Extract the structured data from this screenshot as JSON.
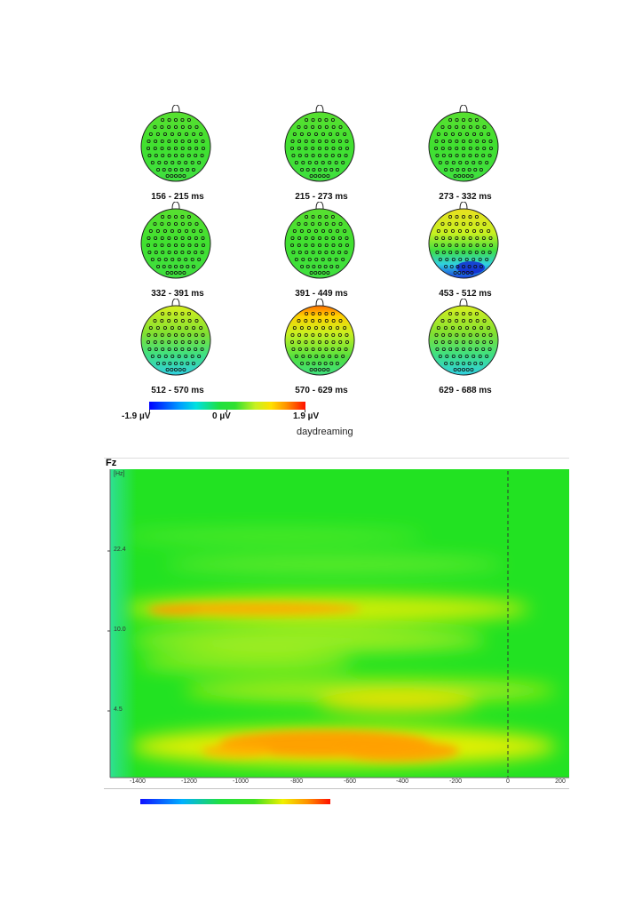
{
  "topomaps": [
    {
      "label": "156 - 215 ms",
      "pattern": "flat"
    },
    {
      "label": "215 - 273 ms",
      "pattern": "flat"
    },
    {
      "label": "273 - 332 ms",
      "pattern": "flat"
    },
    {
      "label": "332 - 391 ms",
      "pattern": "flat"
    },
    {
      "label": "391 - 449 ms",
      "pattern": "flat"
    },
    {
      "label": "453 - 512 ms",
      "pattern": "posterior-negative-strong"
    },
    {
      "label": "512 - 570 ms",
      "pattern": "posterior-negative"
    },
    {
      "label": "570 - 629 ms",
      "pattern": "frontal-positive"
    },
    {
      "label": "629 - 688 ms",
      "pattern": "posterior-negative"
    }
  ],
  "topo_colorbar": {
    "min_label": "-1.9 µV",
    "mid_label": "0 µV",
    "max_label": "1.9 µV"
  },
  "condition_label": "daydreaming",
  "spectrogram": {
    "channel": "Fz",
    "y_unit": "[Hz]",
    "y_ticks": [
      "22.4",
      "10.0",
      "4.5"
    ],
    "x_ticks": [
      "-1400",
      "-1200",
      "-1000",
      "-800",
      "-600",
      "-400",
      "-200",
      "0",
      "200"
    ],
    "colors": {
      "background": "#22e222",
      "warm": "#ffe100",
      "hot": "#ff9a00"
    }
  }
}
